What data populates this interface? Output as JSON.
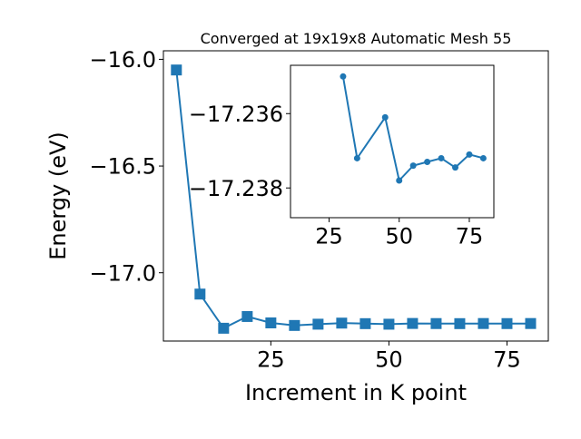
{
  "chart_data": [
    {
      "type": "line",
      "title": "Converged at 19x19x8 Automatic Mesh 55",
      "xlabel": "Increment in K point",
      "ylabel": "Energy (eV)",
      "xlim": [
        2.25,
        83.75
      ],
      "ylim": [
        -17.32,
        -15.96
      ],
      "xticks": [
        25,
        50,
        75
      ],
      "yticks": [
        -16.0,
        -16.5,
        -17.0
      ],
      "ytick_labels": [
        "−16.0",
        "−16.5",
        "−17.0"
      ],
      "marker": "square",
      "color": "#1f77b4",
      "grid": false,
      "legend": "none",
      "x": [
        5,
        10,
        15,
        20,
        25,
        30,
        35,
        40,
        45,
        50,
        55,
        60,
        65,
        70,
        75,
        80
      ],
      "y": [
        -16.05,
        -17.1,
        -17.26,
        -17.205,
        -17.235,
        -17.247,
        -17.241,
        -17.236,
        -17.2385,
        -17.2411,
        -17.2376,
        -17.2381,
        -17.2384,
        -17.2379,
        -17.2382,
        -17.2379
      ]
    },
    {
      "type": "line",
      "title": "",
      "xlim": [
        11.25,
        83.75
      ],
      "ylim": [
        -17.2388,
        -17.2347
      ],
      "xticks": [
        25,
        50,
        75
      ],
      "yticks": [
        -17.238,
        -17.236
      ],
      "ytick_labels": [
        "−17.238",
        "−17.236"
      ],
      "marker": "circle",
      "color": "#1f77b4",
      "grid": false,
      "legend": "none",
      "x": [
        30,
        35,
        45,
        50,
        55,
        60,
        65,
        70,
        75,
        80
      ],
      "y": [
        -17.235,
        -17.2372,
        -17.2361,
        -17.2378,
        -17.2374,
        -17.2373,
        -17.2372,
        -17.23745,
        -17.2371,
        -17.2372
      ]
    }
  ]
}
